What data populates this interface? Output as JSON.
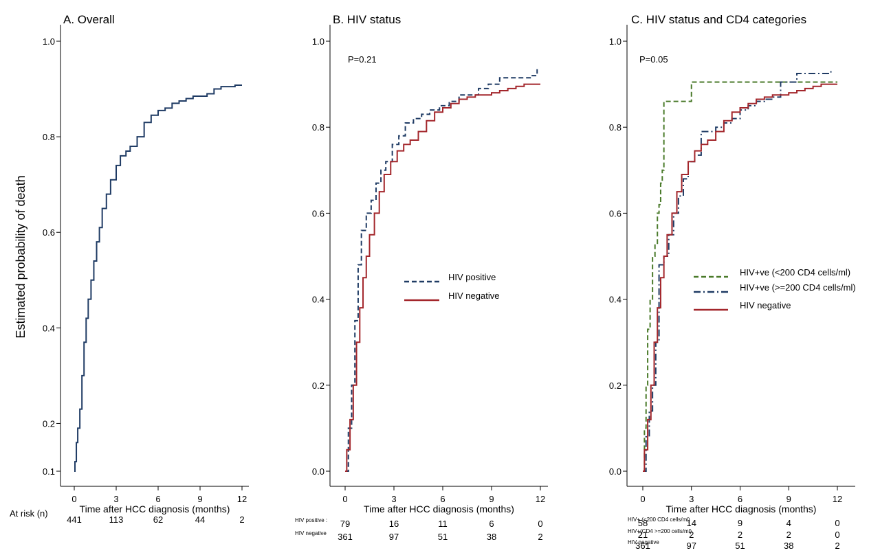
{
  "y_axis_label": "Estimated probability of death",
  "colors": {
    "navy": "#1f3b64",
    "red": "#a3262b",
    "green": "#4a7a2a",
    "axis": "#000000"
  },
  "chart_data": [
    {
      "type": "line",
      "title": "A. Overall",
      "xlabel": "Time after HCC diagnosis (months)",
      "ylabel": "Estimated probability of death",
      "xlim": [
        0,
        12
      ],
      "ylim": [
        0.1,
        1.0
      ],
      "xticks": [
        "0",
        "3",
        "6",
        "9",
        "12"
      ],
      "yticks": [
        "0.1",
        "0.2",
        "0.4",
        "0.6",
        "0.8",
        "1.0"
      ],
      "ytick_values": [
        0.1,
        0.2,
        0.4,
        0.6,
        0.8,
        1.0
      ],
      "series": [
        {
          "color": "#1f3b64",
          "dash": "solid",
          "x": [
            0,
            0.05,
            0.15,
            0.25,
            0.4,
            0.55,
            0.7,
            0.85,
            1.0,
            1.2,
            1.4,
            1.6,
            1.8,
            2.0,
            2.3,
            2.6,
            3.0,
            3.3,
            3.7,
            4.0,
            4.5,
            5.0,
            5.5,
            6.0,
            6.5,
            7.0,
            7.5,
            8.0,
            8.5,
            9.0,
            9.5,
            10.0,
            10.5,
            11.0,
            11.5,
            12.0
          ],
          "y": [
            0.1,
            0.12,
            0.16,
            0.19,
            0.23,
            0.3,
            0.37,
            0.42,
            0.46,
            0.5,
            0.54,
            0.58,
            0.61,
            0.65,
            0.68,
            0.71,
            0.74,
            0.76,
            0.77,
            0.78,
            0.8,
            0.83,
            0.845,
            0.855,
            0.86,
            0.87,
            0.875,
            0.88,
            0.885,
            0.885,
            0.89,
            0.9,
            0.905,
            0.905,
            0.908,
            0.908
          ]
        }
      ],
      "risk_header": "At risk (n)",
      "risk_table": [
        {
          "label": "",
          "counts": [
            "441",
            "113",
            "62",
            "44",
            "2"
          ]
        }
      ]
    },
    {
      "type": "line",
      "title": "B. HIV status",
      "annotation": "P=0.21",
      "xlabel": "Time after HCC diagnosis (months)",
      "xlim": [
        0,
        12
      ],
      "ylim": [
        0,
        1.0
      ],
      "xticks": [
        "0",
        "3",
        "6",
        "9",
        "12"
      ],
      "yticks": [
        "0.0",
        "0.2",
        "0.4",
        "0.6",
        "0.8",
        "1.0"
      ],
      "ytick_values": [
        0,
        0.2,
        0.4,
        0.6,
        0.8,
        1.0
      ],
      "series": [
        {
          "name": "HIV positive",
          "color": "#1f3b64",
          "dash": "dashed",
          "x": [
            0,
            0.2,
            0.4,
            0.6,
            0.8,
            1.0,
            1.3,
            1.6,
            1.9,
            2.2,
            2.5,
            2.9,
            3.3,
            3.7,
            4.2,
            4.7,
            5.2,
            5.8,
            6.4,
            7.0,
            7.6,
            8.2,
            8.8,
            9.5,
            10.5,
            11.5,
            11.8
          ],
          "y": [
            0,
            0.1,
            0.2,
            0.35,
            0.48,
            0.56,
            0.6,
            0.63,
            0.67,
            0.7,
            0.72,
            0.76,
            0.78,
            0.81,
            0.82,
            0.83,
            0.84,
            0.85,
            0.86,
            0.875,
            0.875,
            0.89,
            0.9,
            0.915,
            0.915,
            0.92,
            0.935
          ]
        },
        {
          "name": "HIV negative",
          "color": "#a3262b",
          "dash": "solid",
          "x": [
            0,
            0.1,
            0.3,
            0.5,
            0.7,
            0.9,
            1.1,
            1.3,
            1.5,
            1.8,
            2.1,
            2.4,
            2.8,
            3.2,
            3.6,
            4.0,
            4.5,
            5.0,
            5.5,
            6.0,
            6.5,
            7.0,
            7.5,
            8.0,
            8.5,
            9.0,
            9.5,
            10.0,
            10.5,
            11.0,
            11.5,
            12.0
          ],
          "y": [
            0,
            0.05,
            0.12,
            0.2,
            0.3,
            0.38,
            0.45,
            0.5,
            0.55,
            0.6,
            0.65,
            0.69,
            0.72,
            0.745,
            0.76,
            0.77,
            0.79,
            0.815,
            0.835,
            0.845,
            0.855,
            0.865,
            0.87,
            0.875,
            0.875,
            0.88,
            0.885,
            0.89,
            0.895,
            0.9,
            0.9,
            0.9
          ]
        }
      ],
      "legend": "center-right",
      "risk_table": [
        {
          "label": "HIV positive :",
          "counts": [
            "79",
            "16",
            "11",
            "6",
            "0"
          ]
        },
        {
          "label": "HIV negative",
          "counts": [
            "361",
            "97",
            "51",
            "38",
            "2"
          ]
        }
      ]
    },
    {
      "type": "line",
      "title": "C. HIV status and CD4 categories",
      "annotation": "P=0.05",
      "xlabel": "Time after HCC diagnosis (months)",
      "xlim": [
        0,
        12
      ],
      "ylim": [
        0,
        1.0
      ],
      "xticks": [
        "0",
        "3",
        "6",
        "9",
        "12"
      ],
      "yticks": [
        "0.0",
        "0.2",
        "0.4",
        "0.6",
        "0.8",
        "1.0"
      ],
      "ytick_values": [
        0,
        0.2,
        0.4,
        0.6,
        0.8,
        1.0
      ],
      "series": [
        {
          "name": "HIV+ve (<200 CD4 cells/ml)",
          "color": "#4a7a2a",
          "dash": "dashed",
          "x": [
            0,
            0.1,
            0.2,
            0.3,
            0.45,
            0.6,
            0.75,
            0.9,
            1.0,
            1.1,
            1.2,
            1.3,
            2.9,
            3.0,
            12.0
          ],
          "y": [
            0,
            0.1,
            0.2,
            0.33,
            0.4,
            0.5,
            0.53,
            0.6,
            0.62,
            0.67,
            0.7,
            0.86,
            0.86,
            0.905,
            0.905
          ]
        },
        {
          "name": "HIV+ve (>=200 CD4 cells/ml)",
          "color": "#1f3b64",
          "dash": "dashdot",
          "x": [
            0,
            0.2,
            0.4,
            0.6,
            0.8,
            1.0,
            1.3,
            1.6,
            1.9,
            2.2,
            2.5,
            2.8,
            3.2,
            3.6,
            4.0,
            4.5,
            5.0,
            5.5,
            6.0,
            6.5,
            7.0,
            7.5,
            8.0,
            8.5,
            9.0,
            9.5,
            10.5,
            11.3,
            11.6
          ],
          "y": [
            0,
            0.08,
            0.14,
            0.2,
            0.3,
            0.48,
            0.5,
            0.55,
            0.6,
            0.64,
            0.68,
            0.72,
            0.735,
            0.79,
            0.79,
            0.8,
            0.81,
            0.82,
            0.84,
            0.85,
            0.86,
            0.865,
            0.87,
            0.905,
            0.905,
            0.925,
            0.925,
            0.925,
            0.935
          ]
        },
        {
          "name": "HIV negative",
          "color": "#a3262b",
          "dash": "solid",
          "x": [
            0,
            0.1,
            0.3,
            0.5,
            0.7,
            0.9,
            1.1,
            1.3,
            1.5,
            1.8,
            2.1,
            2.4,
            2.8,
            3.2,
            3.6,
            4.0,
            4.5,
            5.0,
            5.5,
            6.0,
            6.5,
            7.0,
            7.5,
            8.0,
            8.5,
            9.0,
            9.5,
            10.0,
            10.5,
            11.0,
            11.5,
            12.0
          ],
          "y": [
            0,
            0.05,
            0.12,
            0.2,
            0.3,
            0.38,
            0.45,
            0.5,
            0.55,
            0.6,
            0.65,
            0.69,
            0.72,
            0.745,
            0.76,
            0.77,
            0.79,
            0.815,
            0.835,
            0.845,
            0.855,
            0.865,
            0.87,
            0.875,
            0.875,
            0.88,
            0.885,
            0.89,
            0.895,
            0.9,
            0.9,
            0.9
          ]
        }
      ],
      "legend": "center-right",
      "risk_table": [
        {
          "label": "HIV+ (<200 CD4 cells/ml)",
          "counts": [
            "58",
            "14",
            "9",
            "4",
            "0"
          ]
        },
        {
          "label": "HIV+(CD4 >=200 cells/ml)",
          "counts": [
            "21",
            "2",
            "2",
            "2",
            "0"
          ]
        },
        {
          "label": "HIV negative",
          "counts": [
            "361",
            "97",
            "51",
            "38",
            "2"
          ]
        }
      ]
    }
  ]
}
